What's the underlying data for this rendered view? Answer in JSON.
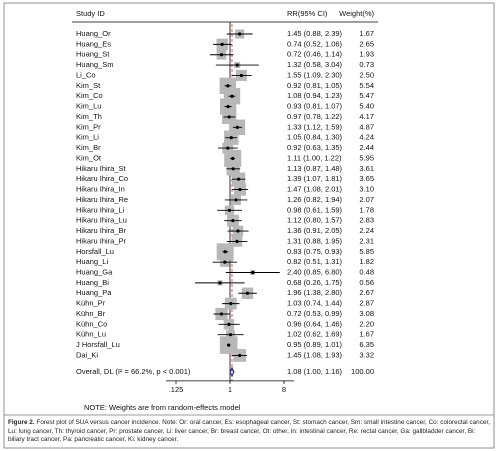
{
  "chart_data": {
    "type": "forest",
    "header": {
      "study": "Study ID",
      "rr": "RR(95% CI)",
      "weight": "Weight(%)"
    },
    "studies": [
      "Huang_Or",
      "Huang_Es",
      "Huang_St",
      "Huang_Sm",
      "Li_Co",
      "Kim_St",
      "Kim_Co",
      "Kim_Lu",
      "Kim_Th",
      "Kim_Pr",
      "Kim_Li",
      "Kim_Br",
      "Kim_Ot",
      "Hikaru Ihira_St",
      "Hikaru Ihira_Co",
      "Hikaru Ihira_In",
      "Hikaru Ihira_Re",
      "Hikaru Ihira_Li",
      "Hikaru Ihira_Lu",
      "Hikaru Ihira_Br",
      "Hikaru Ihira_Pr",
      "Horsfall_Lu",
      "Huang_Li",
      "Huang_Ga",
      "Huang_Bi",
      "Huang_Pa",
      "Kühn_Pr",
      "Kühn_Br",
      "Kühn_Co",
      "Kühn_Lu",
      "J Horsfall_Lu",
      "Dai_Ki"
    ],
    "rr": [
      1.45,
      0.74,
      0.72,
      1.32,
      1.55,
      0.92,
      1.08,
      0.93,
      0.97,
      1.33,
      1.05,
      0.92,
      1.11,
      1.13,
      1.39,
      1.47,
      1.26,
      0.98,
      1.12,
      1.36,
      1.31,
      0.83,
      0.82,
      2.4,
      0.68,
      1.96,
      1.03,
      0.72,
      0.96,
      1.02,
      0.95,
      1.45
    ],
    "ci_low": [
      0.88,
      0.52,
      0.46,
      0.58,
      1.09,
      0.81,
      0.94,
      0.81,
      0.78,
      1.12,
      0.84,
      0.63,
      1.0,
      0.87,
      1.07,
      1.08,
      0.82,
      0.61,
      0.8,
      0.91,
      0.88,
      0.75,
      0.51,
      0.85,
      0.26,
      1.38,
      0.74,
      0.53,
      0.64,
      0.62,
      0.89,
      1.08
    ],
    "ci_high": [
      2.39,
      1.06,
      1.14,
      3.04,
      2.3,
      1.05,
      1.23,
      1.07,
      1.22,
      1.59,
      1.3,
      1.35,
      1.22,
      1.48,
      1.81,
      2.01,
      1.94,
      1.59,
      1.57,
      2.05,
      1.95,
      0.93,
      1.31,
      6.8,
      1.75,
      2.8,
      1.44,
      0.99,
      1.46,
      1.69,
      1.01,
      1.93
    ],
    "rr_labels": [
      "1.45 (0.88, 2.39)",
      "0.74 (0.52, 1.06)",
      "0.72 (0.46, 1.14)",
      "1.32 (0.58, 3.04)",
      "1.55 (1.09, 2.30)",
      "0.92 (0.81, 1.05)",
      "1.08 (0.94, 1.23)",
      "0.93 (0.81, 1.07)",
      "0.97 (0.78, 1.22)",
      "1.33 (1.12, 1.59)",
      "1.05 (0.84, 1.30)",
      "0.92 (0.63, 1.35)",
      "1.11 (1.00, 1.22)",
      "1.13 (0.87, 1.48)",
      "1.39 (1.07, 1.81)",
      "1.47 (1.08, 2.01)",
      "1.26 (0.82, 1.94)",
      "0.98 (0.61, 1.59)",
      "1.12 (0.80, 1.57)",
      "1.36 (0.91, 2.05)",
      "1.31 (0.88, 1.95)",
      "0.83 (0.75, 0.93)",
      "0.82 (0.51, 1.31)",
      "2.40 (0.85, 6.80)",
      "0.68 (0.26, 1.75)",
      "1.96 (1.38, 2.80)",
      "1.03 (0.74, 1.44)",
      "0.72 (0.53, 0.99)",
      "0.96 (0.64, 1.46)",
      "1.02 (0.62, 1.69)",
      "0.95 (0.89, 1.01)",
      "1.45 (1.08, 1.93)"
    ],
    "weights": [
      1.67,
      2.65,
      1.93,
      0.73,
      2.5,
      5.54,
      5.47,
      5.4,
      4.17,
      4.87,
      4.24,
      2.44,
      5.95,
      3.61,
      3.65,
      3.1,
      2.07,
      1.78,
      2.83,
      2.24,
      2.31,
      5.85,
      1.82,
      0.48,
      0.56,
      2.67,
      2.87,
      3.08,
      2.2,
      1.67,
      6.35,
      3.32
    ],
    "weight_labels": [
      "1.67",
      "2.65",
      "1.93",
      "0.73",
      "2.50",
      "5.54",
      "5.47",
      "5.40",
      "4.17",
      "4.87",
      "4.24",
      "2.44",
      "5.95",
      "3.61",
      "3.65",
      "3.10",
      "2.07",
      "1.78",
      "2.83",
      "2.24",
      "2.31",
      "5.85",
      "1.82",
      "0.48",
      "0.56",
      "2.67",
      "2.87",
      "3.08",
      "2.20",
      "1.67",
      "6.35",
      "3.32"
    ],
    "overall": {
      "label": "Overall, DL (I² = 66.2%, p < 0.001)",
      "rr": 1.08,
      "ci_low": 1.0,
      "ci_high": 1.16,
      "rr_label": "1.08 (1.00, 1.16)",
      "weight": 100,
      "weight_label": "100.00"
    },
    "xscale": "log",
    "xlim": [
      0.125,
      8
    ],
    "xticks": [
      {
        "value": 0.125,
        "label": ".125"
      },
      1,
      8
    ],
    "box_color": "#b8b8b8",
    "diamond_color": "#2a2a8c",
    "ref_line_color": "#c0392b",
    "note": "NOTE: Weights are from random-effects model"
  },
  "caption": {
    "label": "Figure 2.",
    "text": "Forest plot of SUA versus cancer incidence. Note: Or: oral cancer, Es: esophageal cancer, St: stomach cancer, Sm: small intestine cancer, Co: colorectal cancer, Lu: lung cancer, Th: thyroid cancer, Pr: prostate cancer, Li: liver cancer, Br: breast cancer, Ot: other, In: intestinal cancer, Re: rectal cancer, Ga: gallbladder cancer, Bi: biliary tract cancer, Pa: pancreatic cancer, Ki: kidney cancer."
  }
}
